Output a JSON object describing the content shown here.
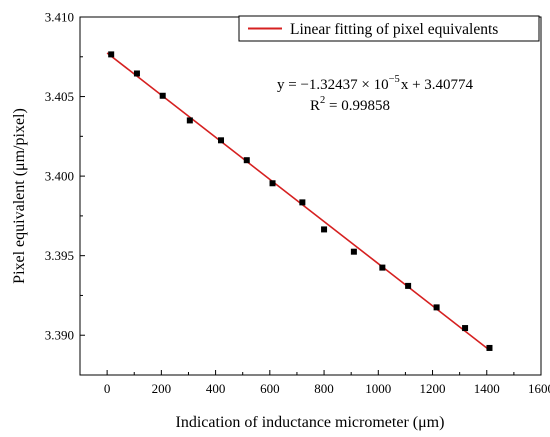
{
  "chart_data": {
    "type": "scatter",
    "xlabel": "Indication of inductance micrometer (μm)",
    "ylabel": "Pixel equivalent (μm/pixel)",
    "xlim": [
      -100,
      1600
    ],
    "ylim": [
      3.3875,
      3.41
    ],
    "x_ticks": [
      "0",
      "200",
      "400",
      "600",
      "800",
      "1000",
      "1200",
      "1400",
      "1600"
    ],
    "y_ticks": [
      "3.390",
      "3.395",
      "3.400",
      "3.405",
      "3.410"
    ],
    "grid": false,
    "legend": {
      "position": "top-right",
      "entries": [
        "Linear fitting of pixel equivalents"
      ]
    },
    "series": [
      {
        "kind": "points",
        "color": "#000000",
        "x": [
          15,
          110,
          205,
          305,
          420,
          515,
          610,
          720,
          800,
          910,
          1015,
          1110,
          1215,
          1320,
          1410
        ],
        "y": [
          3.40765,
          3.40645,
          3.40505,
          3.4035,
          3.40225,
          3.401,
          3.39955,
          3.39835,
          3.39665,
          3.39525,
          3.39425,
          3.3931,
          3.39175,
          3.39045,
          3.3892
        ]
      },
      {
        "name": "Linear fitting of pixel equivalents",
        "kind": "fit-line",
        "color": "#d62020",
        "slope": -1.32437e-05,
        "intercept": 3.40774,
        "x_range": [
          0,
          1410
        ]
      }
    ],
    "annotations": {
      "equation_prefix": "y = −1.32437 × 10",
      "equation_exponent": "−5",
      "equation_suffix": "x + 3.40774",
      "r2_label": "R",
      "r2_exponent": "2",
      "r2_value": " = 0.99858"
    }
  }
}
